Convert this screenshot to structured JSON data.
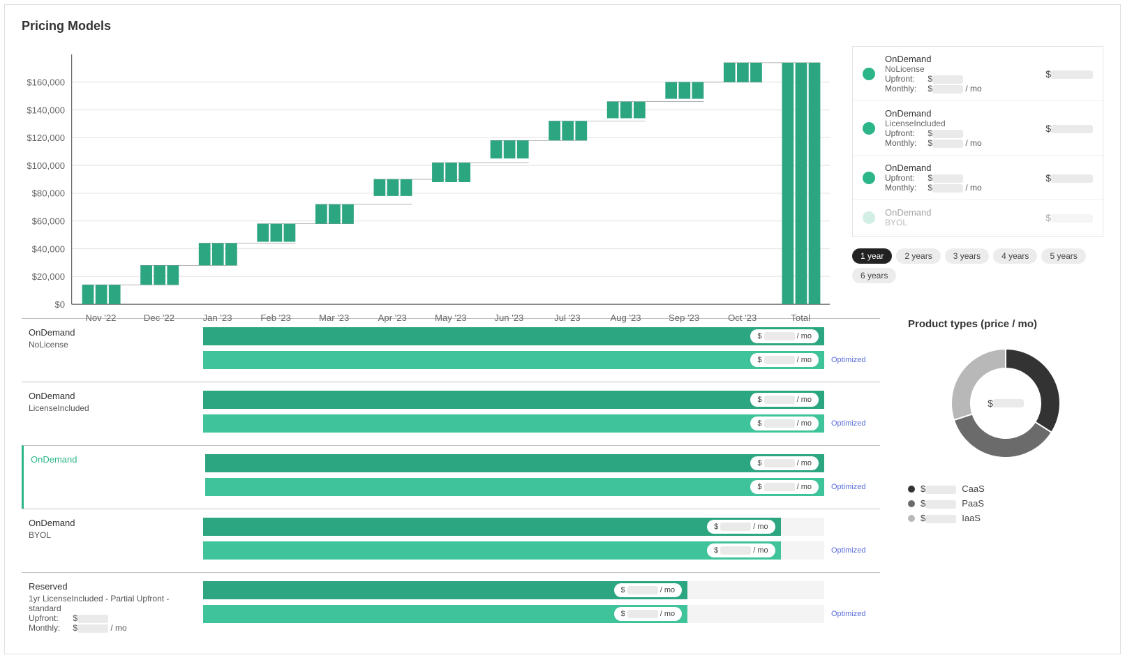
{
  "page": {
    "title": "Pricing Models"
  },
  "chart": {
    "type": "bar-waterfall",
    "x_labels": [
      "Nov '22",
      "Dec '22",
      "Jan '23",
      "Feb '23",
      "Mar '23",
      "Apr '23",
      "May '23",
      "Jun '23",
      "Jul '23",
      "Aug '23",
      "Sep '23",
      "Oct '23",
      "Total"
    ],
    "y_ticks": [
      "$0",
      "$20,000",
      "$40,000",
      "$60,000",
      "$80,000",
      "$100,000",
      "$120,000",
      "$140,000",
      "$160,000"
    ],
    "ylim": [
      0,
      180000
    ],
    "y_tick_step": 20000,
    "bars_per_group": 3,
    "bar_low": [
      0,
      14000,
      28000,
      45000,
      58000,
      78000,
      88000,
      105000,
      118000,
      134000,
      148000,
      160000,
      0
    ],
    "bar_high": [
      14000,
      28000,
      44000,
      58000,
      72000,
      90000,
      102000,
      118000,
      132000,
      146000,
      160000,
      174000,
      174000
    ],
    "bar_color": "#2ca581",
    "grid_color": "#e6e6e6",
    "axis_color": "#666666",
    "background": "#ffffff",
    "label_fontsize": 11,
    "tick_fontsize": 11
  },
  "side": {
    "cards": [
      {
        "title": "OnDemand",
        "sub": "NoLicense",
        "upfront_label": "Upfront:",
        "upfront_value": "$",
        "monthly_label": "Monthly:",
        "monthly_value": "$",
        "monthly_suffix": "/ mo",
        "amount_prefix": "$",
        "dot_color": "#2db58a",
        "faded": false
      },
      {
        "title": "OnDemand",
        "sub": "LicenseIncluded",
        "upfront_label": "Upfront:",
        "upfront_value": "$",
        "monthly_label": "Monthly:",
        "monthly_value": "$",
        "monthly_suffix": "/ mo",
        "amount_prefix": "$",
        "dot_color": "#2db58a",
        "faded": false
      },
      {
        "title": "OnDemand",
        "sub": "",
        "upfront_label": "Upfront:",
        "upfront_value": "$",
        "monthly_label": "Monthly:",
        "monthly_value": "$",
        "monthly_suffix": "/ mo",
        "amount_prefix": "$",
        "dot_color": "#2db58a",
        "faded": false
      },
      {
        "title": "OnDemand",
        "sub": "BYOL",
        "upfront_label": "",
        "upfront_value": "",
        "monthly_label": "",
        "monthly_value": "",
        "monthly_suffix": "",
        "amount_prefix": "$",
        "dot_color": "#9cdcc8",
        "faded": true
      }
    ],
    "years": [
      {
        "label": "1 year",
        "active": true
      },
      {
        "label": "2 years",
        "active": false
      },
      {
        "label": "3 years",
        "active": false
      },
      {
        "label": "4 years",
        "active": false
      },
      {
        "label": "5 years",
        "active": false
      },
      {
        "label": "6 years",
        "active": false
      }
    ]
  },
  "pricing": {
    "optimized_label": "Optimized",
    "bar_color_main": "#2ca581",
    "bar_color_opt": "#3fc39a",
    "track_bg": "#f4f4f4",
    "badge_prefix": "$",
    "badge_suffix": "/ mo",
    "items": [
      {
        "title": "OnDemand",
        "sub": "NoLicense",
        "selected": false,
        "width_main": 100,
        "width_opt": 100
      },
      {
        "title": "OnDemand",
        "sub": "LicenseIncluded",
        "selected": false,
        "width_main": 100,
        "width_opt": 100
      },
      {
        "title": "OnDemand",
        "sub": "",
        "selected": true,
        "width_main": 100,
        "width_opt": 100
      },
      {
        "title": "OnDemand",
        "sub": "BYOL",
        "selected": false,
        "width_main": 93,
        "width_opt": 93
      },
      {
        "title": "Reserved",
        "sub": "1yr LicenseIncluded - Partial Upfront - standard",
        "selected": false,
        "width_main": 78,
        "width_opt": 78,
        "extra_lines": [
          {
            "label": "Upfront:",
            "value": "$"
          },
          {
            "label": "Monthly:",
            "value": "$",
            "suffix": "/ mo"
          }
        ]
      }
    ]
  },
  "donut": {
    "title": "Product types (price / mo)",
    "center_prefix": "$",
    "colors": [
      "#333333",
      "#6b6b6b",
      "#b8b8b8"
    ],
    "slices": [
      34,
      36,
      30
    ],
    "legend": [
      {
        "label": "CaaS",
        "prefix": "$",
        "color": "#333333"
      },
      {
        "label": "PaaS",
        "prefix": "$",
        "color": "#6b6b6b"
      },
      {
        "label": "IaaS",
        "prefix": "$",
        "color": "#b8b8b8"
      }
    ]
  }
}
